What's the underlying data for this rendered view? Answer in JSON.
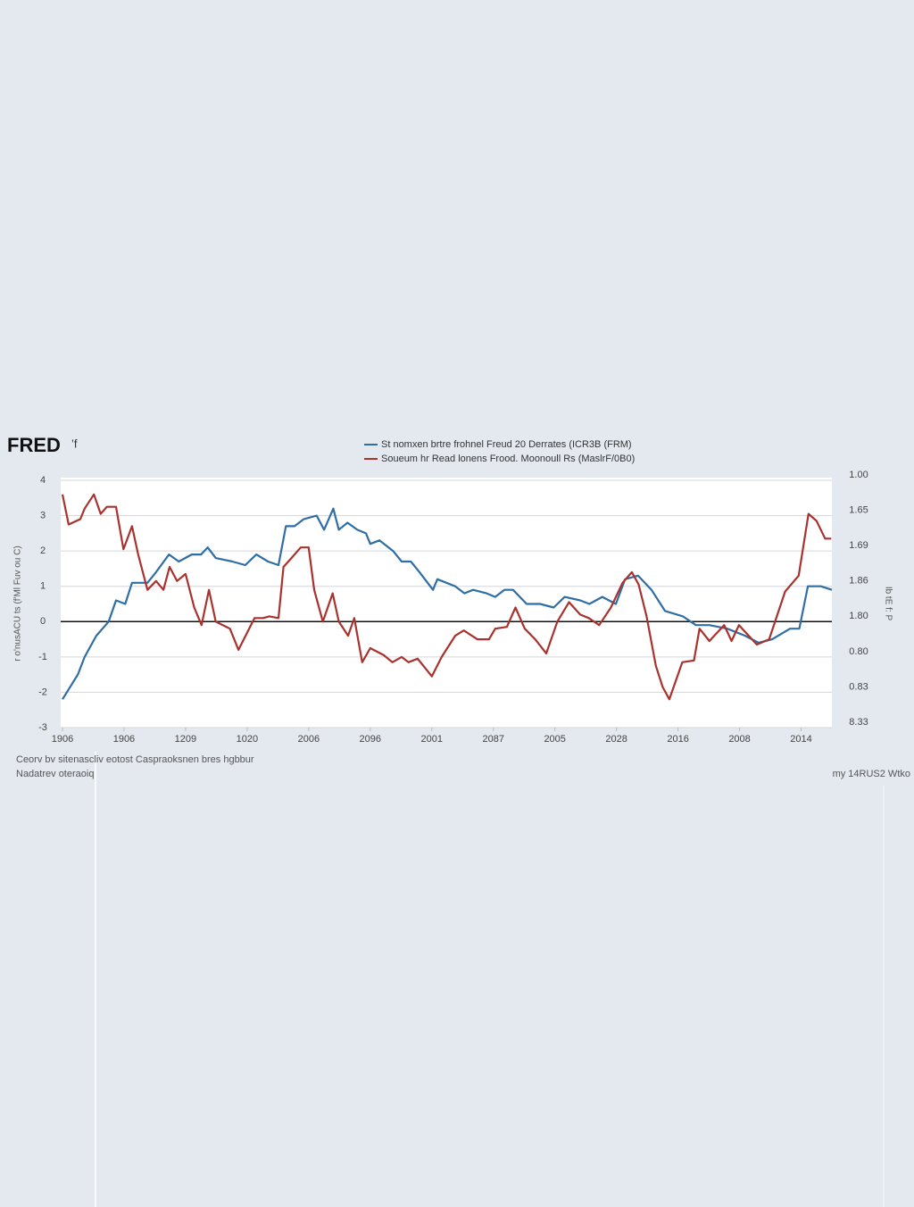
{
  "header": {
    "logo": "FRED",
    "logo_suffix": "’f"
  },
  "chart_data": {
    "type": "line",
    "y_axis_label": "r o'nusACU ts (f'Ml Fuv ou C)",
    "y2_axis_label": "Ib tE f: P",
    "xlim": [
      0,
      125
    ],
    "xticks": [
      {
        "value": 0,
        "label": "1906"
      },
      {
        "value": 10,
        "label": "1906"
      },
      {
        "value": 20,
        "label": "1209"
      },
      {
        "value": 30,
        "label": "1020"
      },
      {
        "value": 40,
        "label": "2006"
      },
      {
        "value": 50,
        "label": "2096"
      },
      {
        "value": 60,
        "label": "2001"
      },
      {
        "value": 70,
        "label": "2087"
      },
      {
        "value": 80,
        "label": "2005"
      },
      {
        "value": 90,
        "label": "2028"
      },
      {
        "value": 100,
        "label": "2016"
      },
      {
        "value": 110,
        "label": "2008"
      },
      {
        "value": 120,
        "label": "2014"
      }
    ],
    "ylim": [
      -3,
      4
    ],
    "yticks": [
      4,
      3,
      2,
      1,
      0,
      -1,
      -2,
      -3
    ],
    "y2_labels": [
      "1.00",
      "1.65",
      "1.69",
      "1.86",
      "1.80",
      "0.80",
      "0.83",
      "8.33"
    ],
    "zero_line": true,
    "grid": true,
    "series": [
      {
        "name": "St nomxen brtre frohnel Freud 20 Derrates (ICR3B (FRM)",
        "color": "#2f6ea5",
        "x": [
          0,
          2.5,
          3.6,
          5.5,
          7.5,
          8.7,
          10.2,
          11.3,
          13.8,
          15.2,
          17.3,
          18.9,
          21.0,
          22.5,
          23.6,
          24.9,
          27.6,
          29.7,
          31.5,
          33.4,
          35.1,
          36.3,
          37.7,
          39.2,
          41.3,
          42.5,
          44.0,
          44.9,
          46.3,
          47.9,
          49.3,
          50.0,
          51.5,
          53.7,
          55.1,
          56.6,
          58.0,
          60.2,
          60.9,
          63.8,
          65.3,
          66.7,
          68.9,
          70.3,
          71.8,
          73.2,
          75.4,
          77.6,
          79.8,
          81.6,
          84.1,
          85.6,
          87.7,
          89.9,
          91.4,
          93.5,
          95.7,
          97.9,
          100.8,
          102.9,
          105.1,
          108.0,
          110.9,
          113.1,
          115.3,
          118.2,
          119.7,
          121.1,
          123.2,
          125.0
        ],
        "values": [
          -2.2,
          -1.5,
          -1.0,
          -0.4,
          0,
          0.6,
          0.5,
          1.1,
          1.1,
          1.4,
          1.9,
          1.7,
          1.9,
          1.9,
          2.1,
          1.8,
          1.7,
          1.6,
          1.9,
          1.7,
          1.6,
          2.7,
          2.7,
          2.9,
          3.0,
          2.6,
          3.2,
          2.6,
          2.8,
          2.6,
          2.5,
          2.2,
          2.3,
          2.0,
          1.7,
          1.7,
          1.4,
          0.9,
          1.2,
          1.0,
          0.8,
          0.9,
          0.8,
          0.7,
          0.9,
          0.9,
          0.5,
          0.5,
          0.4,
          0.7,
          0.6,
          0.5,
          0.7,
          0.5,
          1.2,
          1.3,
          0.9,
          0.3,
          0.15,
          -0.1,
          -0.1,
          -0.2,
          -0.4,
          -0.6,
          -0.5,
          -0.2,
          -0.2,
          1.0,
          1.0,
          0.9
        ]
      },
      {
        "name": "Soueum hr Read lonens Frood. Moonoull Rs (MaslrF/0B0)",
        "color": "#a8322d",
        "x": [
          0,
          1.0,
          2.9,
          3.6,
          5.1,
          6.2,
          7.2,
          8.7,
          9.9,
          11.3,
          12.3,
          13.8,
          15.2,
          16.4,
          17.4,
          18.6,
          20.0,
          21.4,
          22.6,
          23.8,
          24.9,
          27.2,
          28.6,
          31.2,
          32.6,
          33.6,
          35.1,
          35.9,
          37.2,
          38.7,
          40.0,
          40.9,
          42.3,
          43.9,
          44.9,
          46.4,
          47.4,
          48.7,
          50.0,
          52.2,
          53.6,
          55.1,
          56.2,
          57.7,
          60.0,
          61.6,
          63.8,
          65.2,
          67.4,
          69.3,
          70.3,
          72.2,
          73.6,
          75.1,
          76.8,
          78.6,
          80.4,
          82.3,
          84.1,
          85.5,
          87.2,
          89.1,
          91.0,
          92.5,
          93.6,
          94.9,
          96.4,
          97.5,
          98.6,
          100.7,
          102.6,
          103.5,
          105.1,
          107.5,
          108.7,
          109.9,
          112.8,
          114.8,
          117.4,
          119.6,
          121.2,
          122.5,
          123.9,
          124.9
        ],
        "values": [
          3.6,
          2.75,
          2.9,
          3.2,
          3.6,
          3.05,
          3.25,
          3.25,
          2.05,
          2.7,
          1.9,
          0.9,
          1.15,
          0.9,
          1.55,
          1.15,
          1.35,
          0.4,
          -0.1,
          0.9,
          0,
          -0.2,
          -0.8,
          0.1,
          0.1,
          0.15,
          0.1,
          1.55,
          1.8,
          2.1,
          2.1,
          0.9,
          0,
          0.8,
          0,
          -0.4,
          0.1,
          -1.15,
          -0.75,
          -0.95,
          -1.15,
          -1.0,
          -1.15,
          -1.05,
          -1.55,
          -1.0,
          -0.4,
          -0.25,
          -0.5,
          -0.5,
          -0.2,
          -0.15,
          0.4,
          -0.2,
          -0.5,
          -0.9,
          0,
          0.55,
          0.2,
          0.1,
          -0.1,
          0.4,
          1.1,
          1.4,
          1.05,
          0.15,
          -1.25,
          -1.85,
          -2.2,
          -1.15,
          -1.1,
          -0.2,
          -0.55,
          -0.1,
          -0.55,
          -0.1,
          -0.65,
          -0.5,
          0.85,
          1.3,
          3.05,
          2.85,
          2.35,
          2.35
        ]
      }
    ]
  },
  "footer": {
    "source_line1": "Ceorv bv sitenascliv eotost Caspraoksnen bres hgbbur",
    "source_line2": "Nadatrev oteraoiq",
    "right_note": "my 14RUS2 Wtko"
  }
}
